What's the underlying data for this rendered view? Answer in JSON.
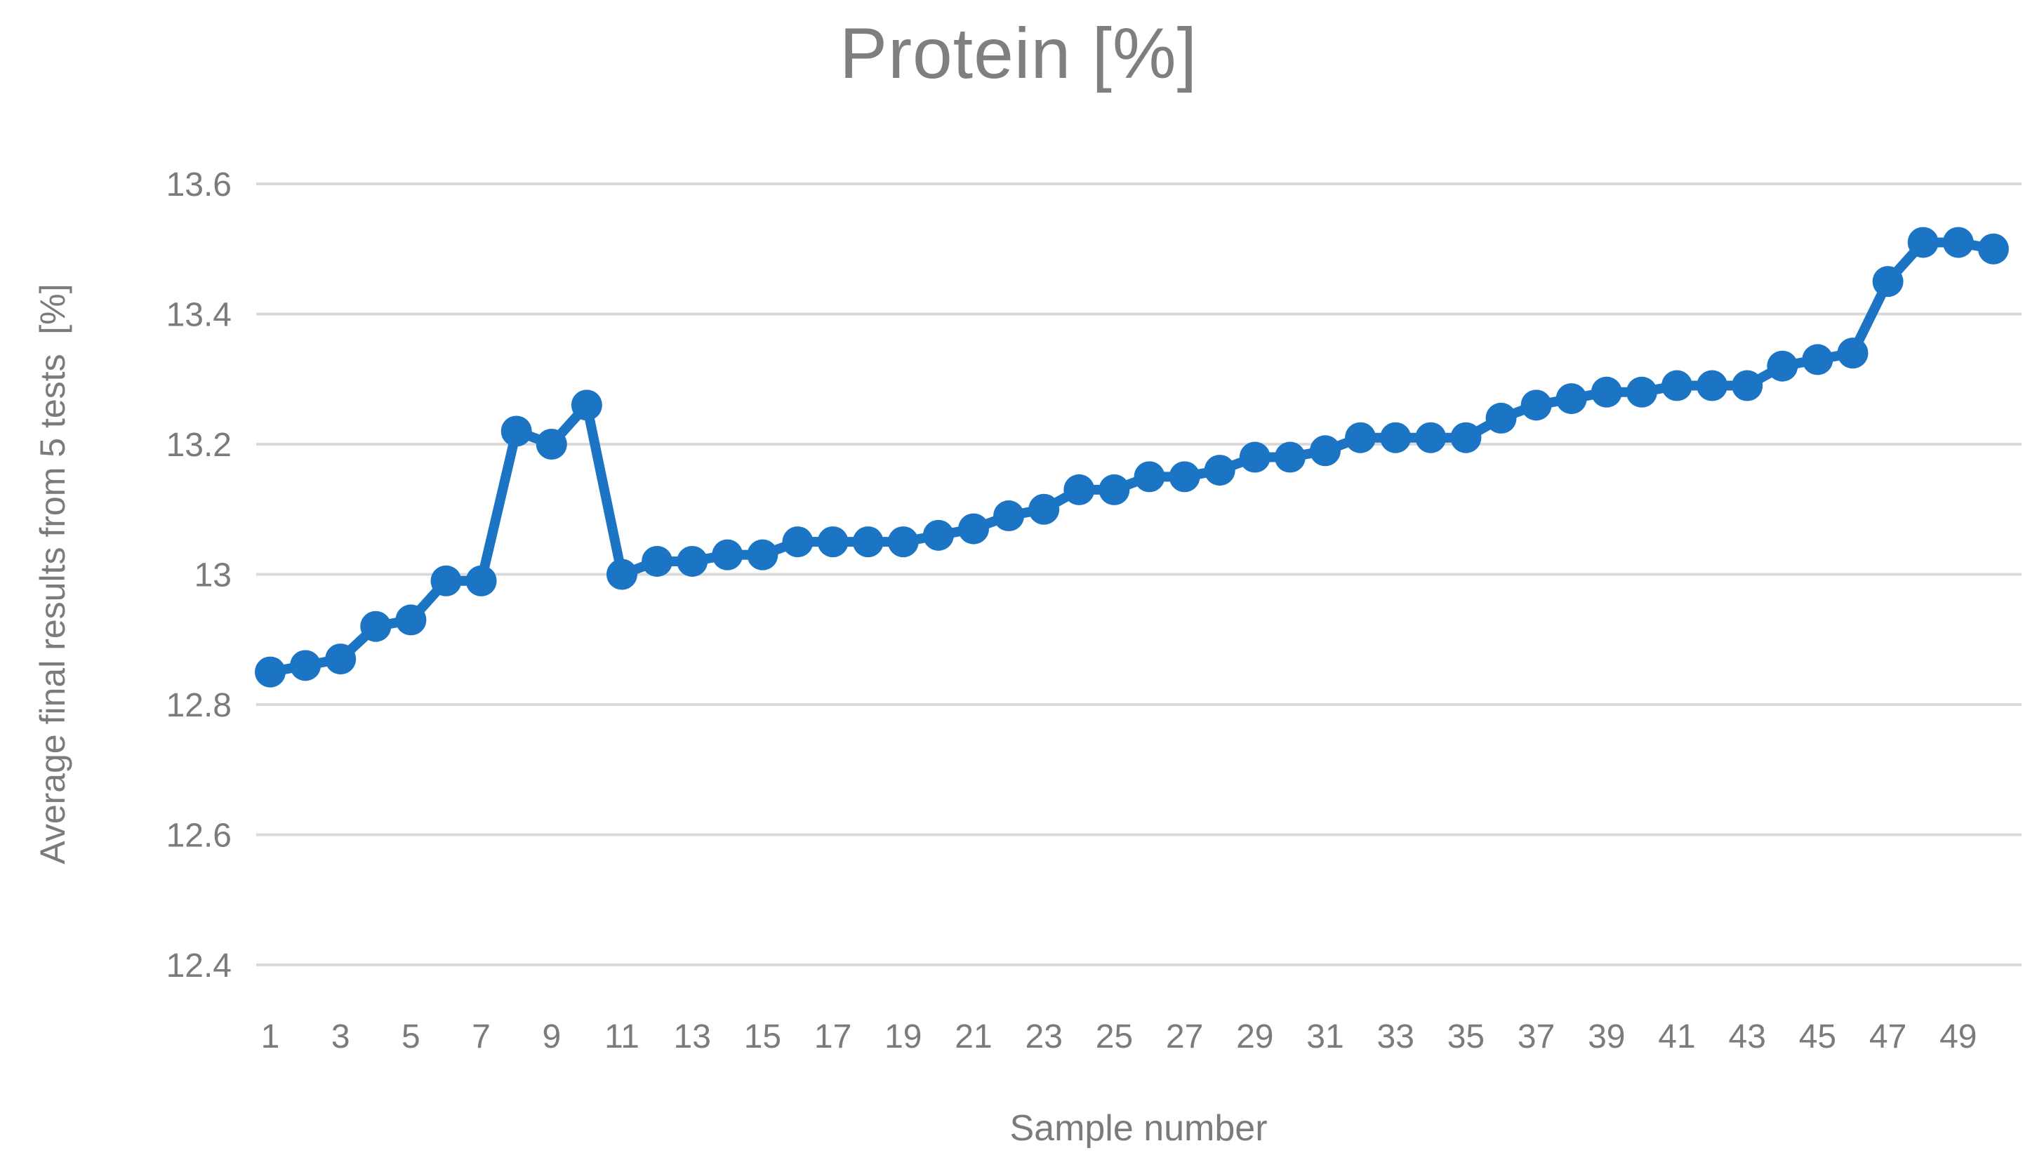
{
  "chart_data": {
    "type": "line",
    "title": "Protein [%]",
    "xlabel": "Sample number",
    "ylabel": "Average final results from 5 tests  [%]",
    "legend": "none",
    "grid": "horizontal",
    "marker": "circle",
    "x": [
      1,
      2,
      3,
      4,
      5,
      6,
      7,
      8,
      9,
      10,
      11,
      12,
      13,
      14,
      15,
      16,
      17,
      18,
      19,
      20,
      21,
      22,
      23,
      24,
      25,
      26,
      27,
      28,
      29,
      30,
      31,
      32,
      33,
      34,
      35,
      36,
      37,
      38,
      39,
      40,
      41,
      42,
      43,
      44,
      45,
      46,
      47,
      48,
      49,
      50
    ],
    "values": [
      12.85,
      12.86,
      12.87,
      12.92,
      12.93,
      12.99,
      12.99,
      13.22,
      13.2,
      13.26,
      13.0,
      13.02,
      13.02,
      13.03,
      13.03,
      13.05,
      13.05,
      13.05,
      13.05,
      13.06,
      13.07,
      13.09,
      13.1,
      13.13,
      13.13,
      13.15,
      13.15,
      13.16,
      13.18,
      13.18,
      13.19,
      13.21,
      13.21,
      13.21,
      13.21,
      13.24,
      13.26,
      13.27,
      13.28,
      13.28,
      13.29,
      13.29,
      13.29,
      13.32,
      13.33,
      13.34,
      13.45,
      13.51,
      13.51,
      13.5
    ],
    "xticks": [
      1,
      3,
      5,
      7,
      9,
      11,
      13,
      15,
      17,
      19,
      21,
      23,
      25,
      27,
      29,
      31,
      33,
      35,
      37,
      39,
      41,
      43,
      45,
      47,
      49
    ],
    "yticks": [
      12.4,
      12.6,
      12.8,
      13,
      13.2,
      13.4,
      13.6
    ],
    "ytick_labels": [
      "12.4",
      "12.6",
      "12.8",
      "13",
      "13.2",
      "13.4",
      "13.6"
    ],
    "ylim": [
      12.4,
      13.6
    ],
    "colors": {
      "series": "#1B74C4",
      "gridline": "#D9D9D9",
      "title_text": "#7f7f7f",
      "axis_text": "#7b7b7b"
    }
  }
}
